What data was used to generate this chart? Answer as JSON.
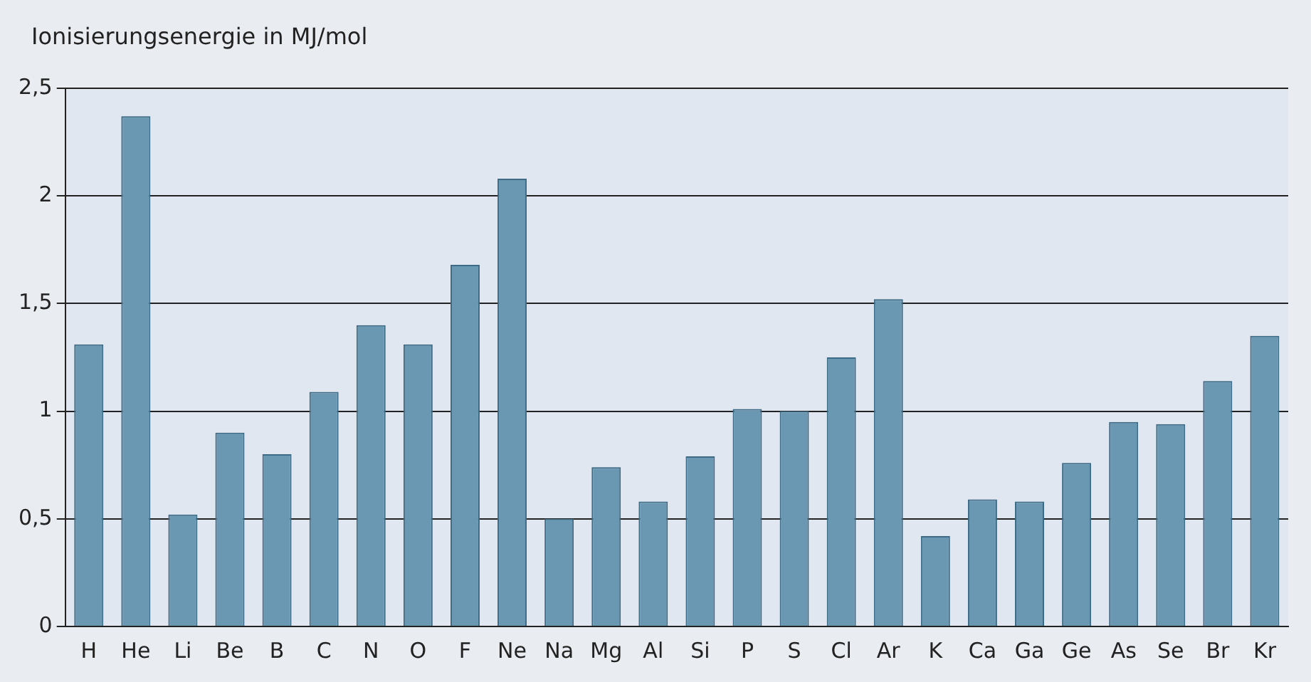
{
  "chart_data": {
    "type": "bar",
    "ylabel": "Ionisierungsenergie in MJ/mol",
    "categories": [
      "H",
      "He",
      "Li",
      "Be",
      "B",
      "C",
      "N",
      "O",
      "F",
      "Ne",
      "Na",
      "Mg",
      "Al",
      "Si",
      "P",
      "S",
      "Cl",
      "Ar",
      "K",
      "Ca",
      "Ga",
      "Ge",
      "As",
      "Se",
      "Br",
      "Kr"
    ],
    "values": [
      1.31,
      2.37,
      0.52,
      0.9,
      0.8,
      1.09,
      1.4,
      1.31,
      1.68,
      2.08,
      0.5,
      0.74,
      0.58,
      0.79,
      1.01,
      1.0,
      1.25,
      1.52,
      0.42,
      0.59,
      0.58,
      0.76,
      0.95,
      0.94,
      1.14,
      1.35
    ],
    "color": "#6a98b3",
    "ylim": [
      0,
      2.5
    ],
    "yticks": [
      0,
      {
        "value": 0.5,
        "label": "0,5"
      },
      1,
      {
        "value": 1.5,
        "label": "1,5"
      },
      2,
      {
        "value": 2.5,
        "label": "2,5"
      }
    ],
    "grid": "y"
  }
}
